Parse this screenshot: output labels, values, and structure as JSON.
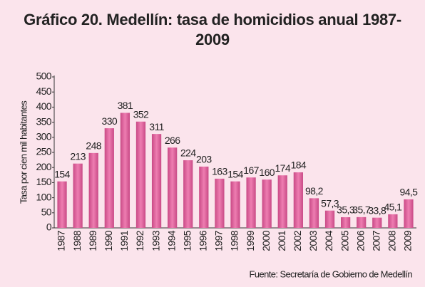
{
  "chart_data": {
    "type": "bar",
    "title": "Gráfico 20. Medellín: tasa de homicidios anual 1987-2009",
    "y_label": "Tasa por cien mil habitantes",
    "source": "Fuente: Secretaría de Gobierno de Medellín",
    "categories": [
      "1987",
      "1988",
      "1989",
      "1990",
      "1991",
      "1992",
      "1993",
      "1994",
      "1995",
      "1996",
      "1997",
      "1998",
      "1999",
      "2000",
      "2001",
      "2002",
      "2003",
      "2004",
      "2005",
      "2006",
      "2007",
      "2008",
      "2009"
    ],
    "values": [
      154,
      213,
      248,
      330,
      381,
      352,
      311,
      266,
      224,
      203,
      163,
      154,
      167,
      160,
      174,
      184,
      98.2,
      57.3,
      35.3,
      35.7,
      33.8,
      45.1,
      94.5
    ],
    "value_labels": [
      "154",
      "213",
      "248",
      "330",
      "381",
      "352",
      "311",
      "266",
      "224",
      "203",
      "163",
      "154",
      "167",
      "160",
      "174",
      "184",
      "98,2",
      "57,3",
      "35,3",
      "35,7",
      "33,8",
      "45,1",
      "94,5"
    ],
    "color": "#e2649e",
    "ylim": [
      0,
      500
    ],
    "yticks": [
      0,
      50,
      100,
      150,
      200,
      250,
      300,
      350,
      400,
      450,
      500
    ]
  }
}
